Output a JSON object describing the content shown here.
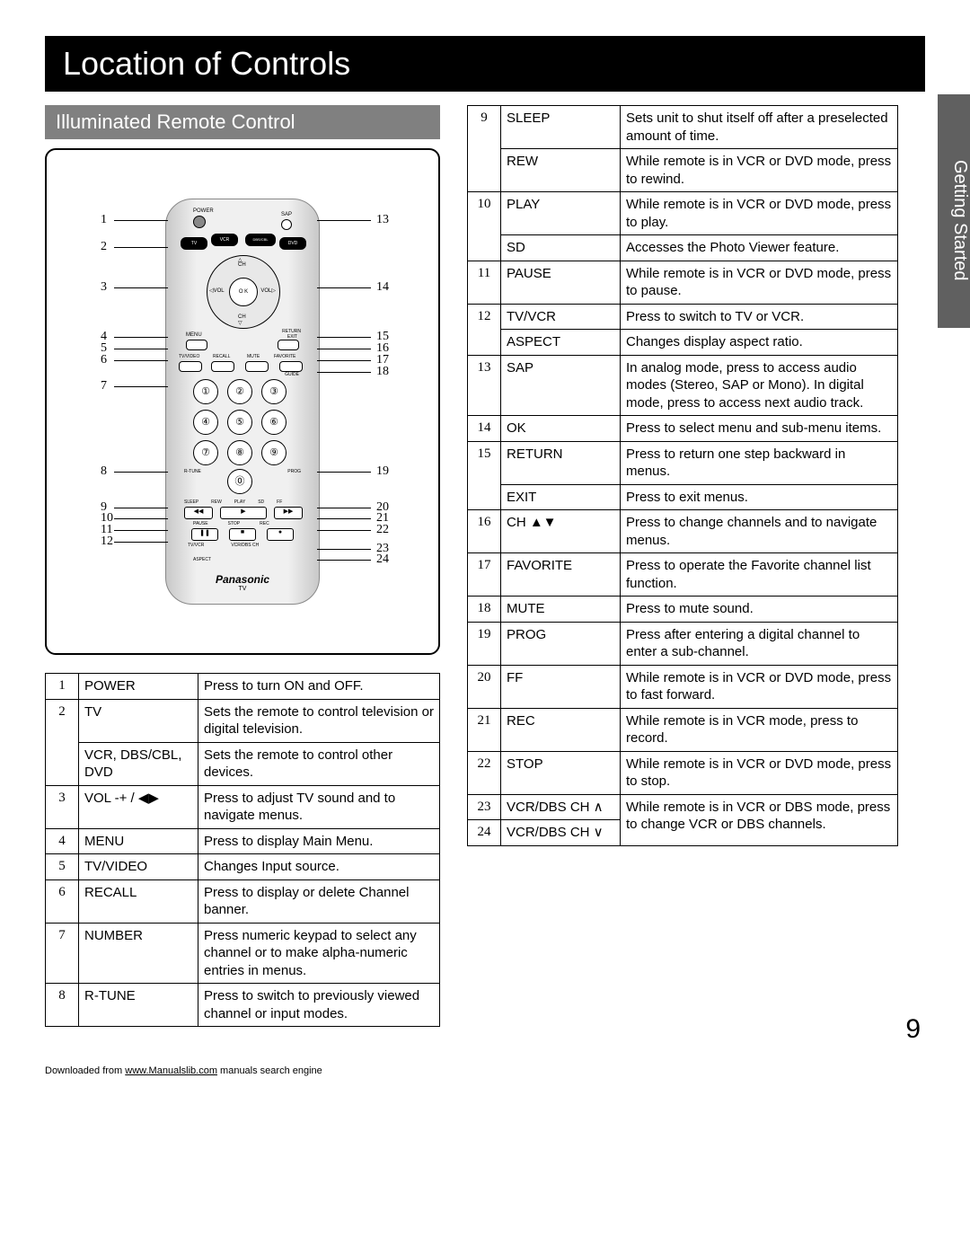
{
  "title": "Location of Controls",
  "subtitle": "Illuminated Remote Control",
  "side_tab": "Getting Started",
  "page_number": "9",
  "footer_prefix": "Downloaded from ",
  "footer_link": "www.Manualslib.com",
  "footer_suffix": " manuals search engine",
  "remote": {
    "brand": "Panasonic",
    "mode": "TV",
    "labels": {
      "power": "POWER",
      "sap": "SAP",
      "tv": "TV",
      "vcr": "VCR",
      "dbs": "DBS/CBL",
      "dvd": "DVD",
      "ch": "CH",
      "ok": "O K",
      "vol": "VOL",
      "menu": "MENU",
      "return": "RETURN",
      "exit": "EXIT",
      "tvvideo": "TV/VIDEO",
      "recall": "RECALL",
      "mute": "MUTE",
      "favorite": "FAVORITE",
      "guide": "GUIDE",
      "rtune": "R-TUNE",
      "prog": "PROG",
      "sleep": "SLEEP",
      "rew": "REW",
      "play": "PLAY",
      "sd": "SD",
      "ff": "FF",
      "pause": "PAUSE",
      "stop": "STOP",
      "rec": "REC",
      "tvvcr": "TV/VCR",
      "vcrdbsch": "VCR/DBS CH",
      "aspect": "ASPECT"
    },
    "callouts_left": [
      "1",
      "2",
      "3",
      "4",
      "5",
      "6",
      "7",
      "8",
      "9",
      "10",
      "11",
      "12"
    ],
    "callouts_right": [
      "13",
      "14",
      "15",
      "16",
      "17",
      "18",
      "19",
      "20",
      "21",
      "22",
      "23",
      "24"
    ]
  },
  "table_left": [
    {
      "num": "1",
      "name": "POWER",
      "desc": "Press to turn ON and OFF."
    },
    {
      "num": "2",
      "rows": [
        {
          "name": "TV",
          "desc": "Sets the remote to control television or digital television."
        },
        {
          "name": "VCR, DBS/CBL, DVD",
          "desc": "Sets the remote to control other devices."
        }
      ]
    },
    {
      "num": "3",
      "name": "VOL -+ / ◀▶",
      "desc": "Press to adjust TV sound and to navigate menus."
    },
    {
      "num": "4",
      "name": "MENU",
      "desc": "Press to display Main Menu."
    },
    {
      "num": "5",
      "name": "TV/VIDEO",
      "desc": "Changes Input source."
    },
    {
      "num": "6",
      "name": "RECALL",
      "desc": "Press to display or delete Channel banner."
    },
    {
      "num": "7",
      "name": "NUMBER",
      "desc": "Press numeric keypad to select any channel or to make alpha-numeric entries in menus."
    },
    {
      "num": "8",
      "name": "R-TUNE",
      "desc": "Press to switch to previously viewed channel or input modes."
    }
  ],
  "table_right": [
    {
      "num": "9",
      "rows": [
        {
          "name": "SLEEP",
          "desc": "Sets unit to shut itself off after a preselected amount of time."
        },
        {
          "name": "REW",
          "desc": "While remote is in VCR or DVD mode, press to rewind."
        }
      ]
    },
    {
      "num": "10",
      "rows": [
        {
          "name": "PLAY",
          "desc": "While remote is in VCR or DVD mode, press to play."
        },
        {
          "name": "SD",
          "desc": "Accesses the Photo Viewer feature."
        }
      ]
    },
    {
      "num": "11",
      "name": "PAUSE",
      "desc": "While remote is in VCR or DVD mode, press to pause."
    },
    {
      "num": "12",
      "rows": [
        {
          "name": "TV/VCR",
          "desc": "Press to switch to TV or VCR."
        },
        {
          "name": "ASPECT",
          "desc": "Changes display aspect ratio."
        }
      ]
    },
    {
      "num": "13",
      "name": "SAP",
      "desc": "In analog mode, press to access audio modes (Stereo, SAP or Mono). In digital mode, press to access next audio track."
    },
    {
      "num": "14",
      "name": "OK",
      "desc": "Press to select menu and sub-menu items."
    },
    {
      "num": "15",
      "rows": [
        {
          "name": "RETURN",
          "desc": "Press to return one step backward in menus."
        },
        {
          "name": "EXIT",
          "desc": "Press to exit menus."
        }
      ]
    },
    {
      "num": "16",
      "name": "CH ▲▼",
      "desc": "Press to change channels and to navigate menus."
    },
    {
      "num": "17",
      "name": "FAVORITE",
      "desc": "Press to operate the Favorite channel list function."
    },
    {
      "num": "18",
      "name": "MUTE",
      "desc": "Press to mute sound."
    },
    {
      "num": "19",
      "name": "PROG",
      "desc": "Press after entering a digital channel to enter a sub-channel."
    },
    {
      "num": "20",
      "name": "FF",
      "desc": "While remote is in VCR or DVD mode, press to fast forward."
    },
    {
      "num": "21",
      "name": "REC",
      "desc": "While remote is in VCR mode, press to record."
    },
    {
      "num": "22",
      "name": "STOP",
      "desc": "While remote is in VCR or DVD mode, press to stop."
    },
    {
      "num": "23",
      "name": "VCR/DBS CH ∧",
      "desc": "While remote is in VCR or DBS mode, press to change VCR or DBS channels.",
      "merged_desc": true
    },
    {
      "num": "24",
      "name": "VCR/DBS CH ∨"
    }
  ]
}
